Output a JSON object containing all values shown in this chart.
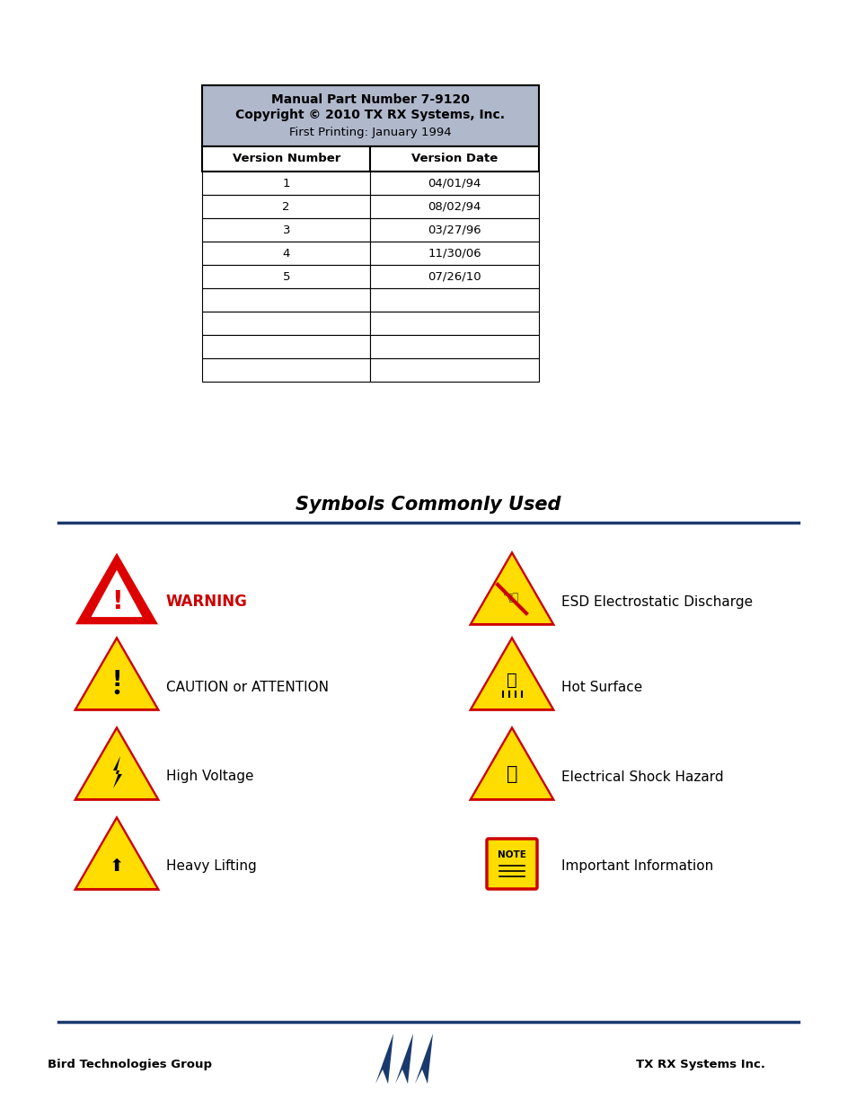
{
  "bg_color": "#ffffff",
  "header_bg": "#b0b8cc",
  "header_line1": "Manual Part Number 7-9120",
  "header_line2": "Copyright © 2010 TX RX Systems, Inc.",
  "header_line3": "First Printing: January 1994",
  "col1_header": "Version Number",
  "col2_header": "Version Date",
  "versions": [
    [
      "1",
      "04/01/94"
    ],
    [
      "2",
      "08/02/94"
    ],
    [
      "3",
      "03/27/96"
    ],
    [
      "4",
      "11/30/06"
    ],
    [
      "5",
      "07/26/10"
    ],
    [
      "",
      ""
    ],
    [
      "",
      ""
    ],
    [
      "",
      ""
    ],
    [
      "",
      ""
    ]
  ],
  "section_title": "Symbols Commonly Used",
  "divider_color": "#1a3a6e",
  "footer_left": "Bird Technologies Group",
  "footer_right": "TX RX Systems Inc."
}
